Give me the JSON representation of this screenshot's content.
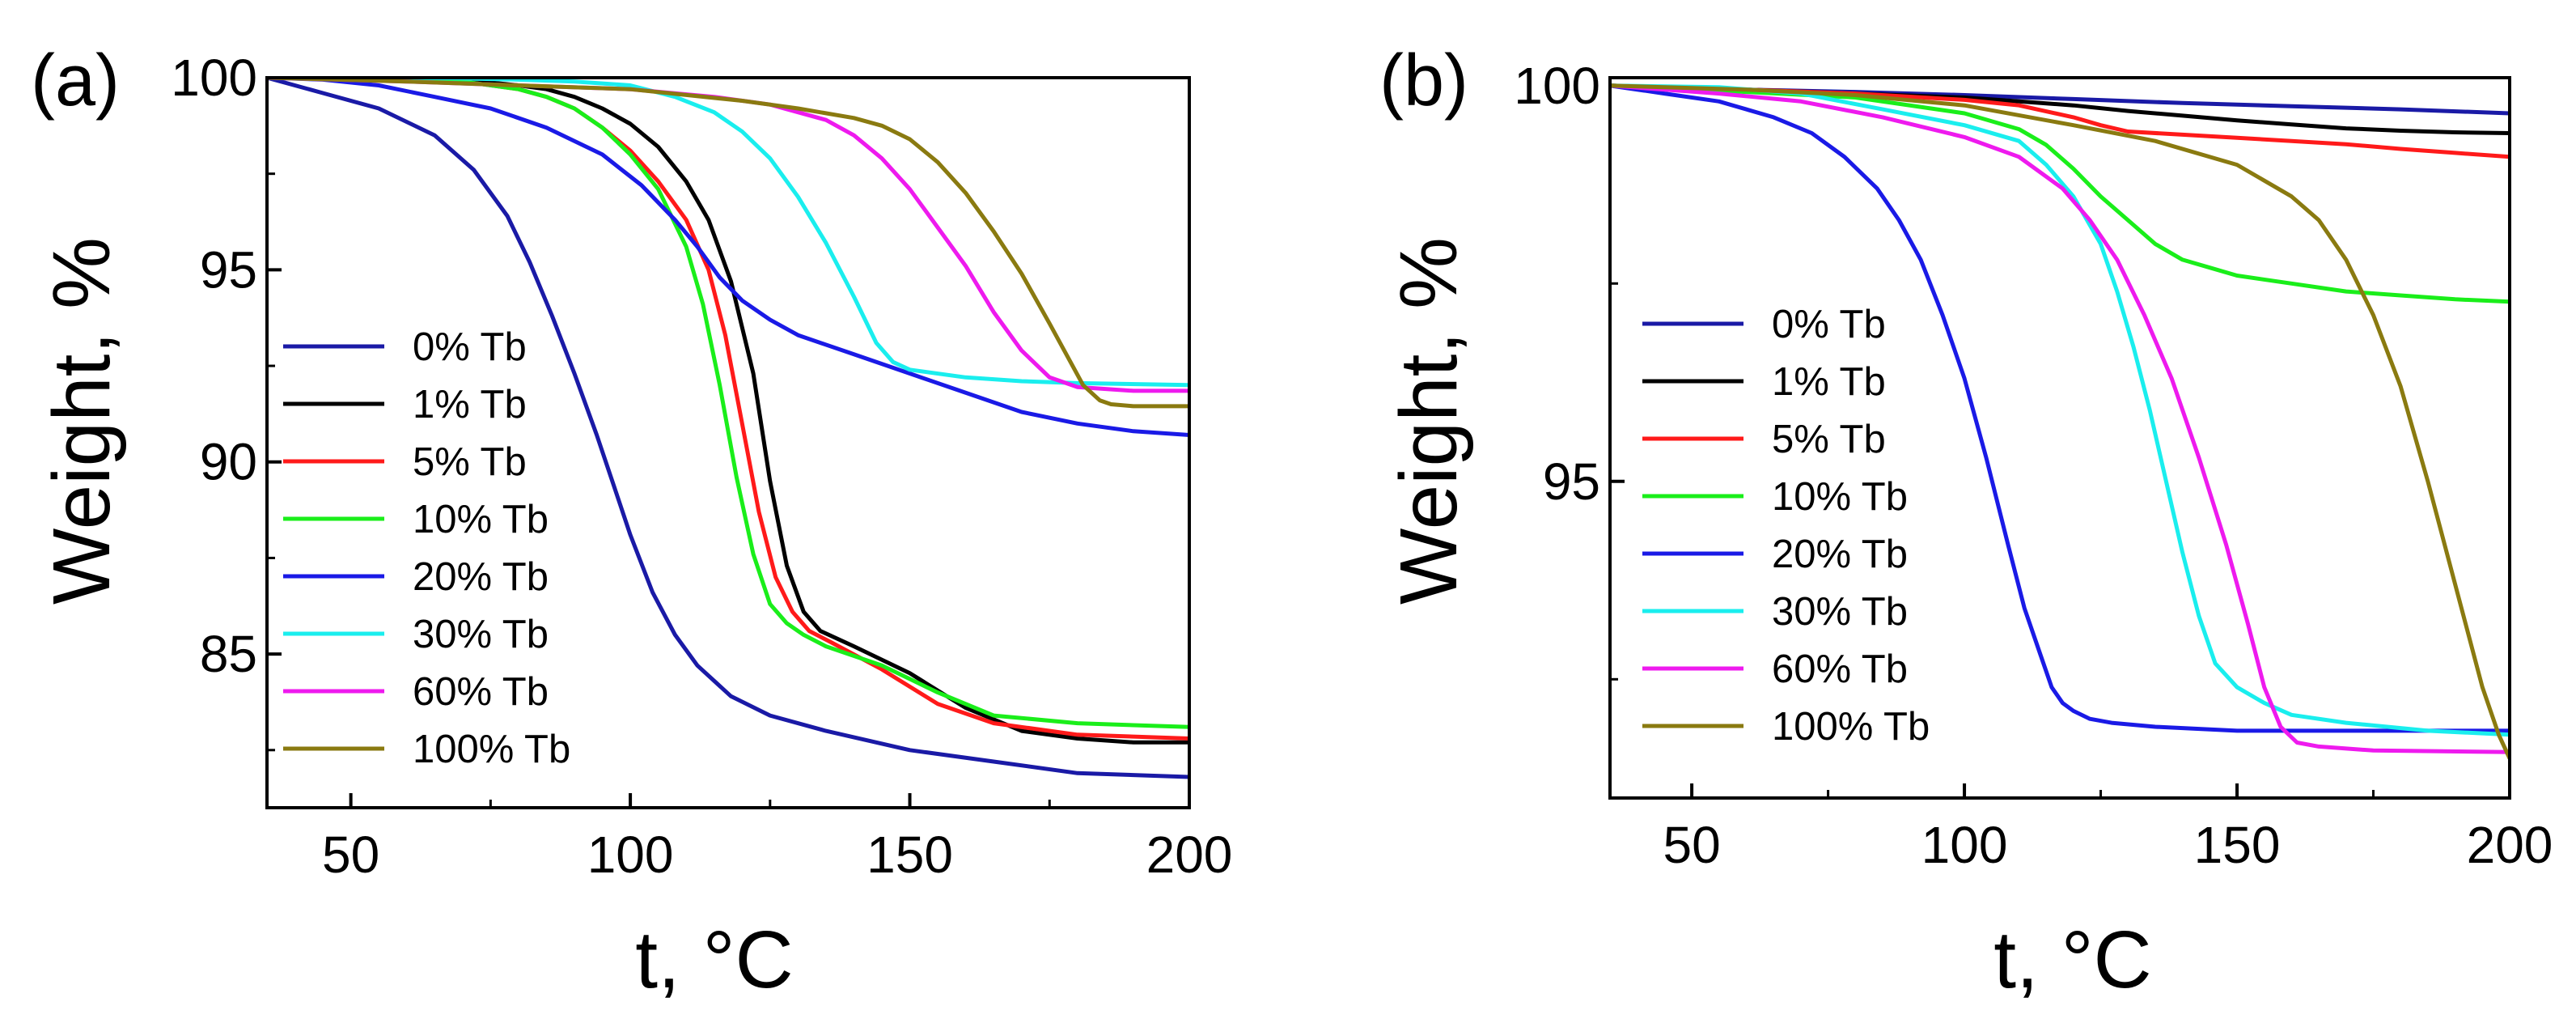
{
  "colors": {
    "0% Tb": "#1a1aa6",
    "1% Tb": "#000000",
    "5% Tb": "#ff1a1a",
    "10% Tb": "#1aee1a",
    "20% Tb": "#1a1ae6",
    "30% Tb": "#1aeeee",
    "60% Tb": "#ee1aee",
    "100% Tb": "#8a7a10"
  },
  "chart_data": [
    {
      "type": "line",
      "panel_label": "(a)",
      "title": "",
      "xlabel": "t, °C",
      "ylabel": "Weight, %",
      "xlim": [
        35,
        200
      ],
      "ylim": [
        81,
        100
      ],
      "xticks": [
        50,
        100,
        150,
        200
      ],
      "yticks": [
        85,
        90,
        95,
        100
      ],
      "grid": false,
      "legend_position": "left",
      "series": [
        {
          "name": "0% Tb",
          "x": [
            35,
            45,
            55,
            65,
            72,
            78,
            82,
            86,
            90,
            94,
            97,
            100,
            104,
            108,
            112,
            118,
            125,
            135,
            150,
            165,
            180,
            200
          ],
          "y": [
            100,
            99.6,
            99.2,
            98.5,
            97.6,
            96.4,
            95.2,
            93.8,
            92.3,
            90.7,
            89.4,
            88.1,
            86.6,
            85.5,
            84.7,
            83.9,
            83.4,
            83.0,
            82.5,
            82.2,
            81.9,
            81.8
          ]
        },
        {
          "name": "1% Tb",
          "x": [
            35,
            50,
            60,
            70,
            80,
            85,
            90,
            95,
            100,
            105,
            110,
            114,
            118,
            122,
            125,
            128,
            131,
            134,
            140,
            150,
            160,
            170,
            180,
            190,
            200
          ],
          "y": [
            100,
            99.99,
            99.97,
            99.95,
            99.8,
            99.7,
            99.5,
            99.2,
            98.8,
            98.2,
            97.3,
            96.3,
            94.7,
            92.3,
            89.5,
            87.3,
            86.1,
            85.6,
            85.2,
            84.5,
            83.6,
            83.0,
            82.8,
            82.7,
            82.7
          ]
        },
        {
          "name": "5% Tb",
          "x": [
            35,
            50,
            60,
            70,
            80,
            85,
            90,
            95,
            100,
            105,
            110,
            114,
            117,
            120,
            123,
            126,
            129,
            132,
            136,
            145,
            155,
            165,
            180,
            200
          ],
          "y": [
            100,
            99.99,
            99.97,
            99.9,
            99.7,
            99.5,
            99.2,
            98.7,
            98.1,
            97.3,
            96.3,
            95.0,
            93.3,
            91.0,
            88.7,
            87.0,
            86.1,
            85.6,
            85.3,
            84.6,
            83.7,
            83.2,
            82.9,
            82.8
          ]
        },
        {
          "name": "10% Tb",
          "x": [
            35,
            50,
            60,
            70,
            80,
            85,
            90,
            95,
            100,
            105,
            110,
            113,
            116,
            119,
            122,
            125,
            128,
            131,
            135,
            145,
            155,
            165,
            180,
            200
          ],
          "y": [
            100,
            99.99,
            99.97,
            99.9,
            99.7,
            99.5,
            99.2,
            98.7,
            98.0,
            97.1,
            95.6,
            94.1,
            92.0,
            89.6,
            87.6,
            86.3,
            85.8,
            85.5,
            85.2,
            84.7,
            84.0,
            83.4,
            83.2,
            83.1
          ]
        },
        {
          "name": "20% Tb",
          "x": [
            35,
            45,
            55,
            65,
            75,
            85,
            95,
            102,
            108,
            112,
            116,
            120,
            125,
            130,
            140,
            150,
            160,
            170,
            180,
            190,
            200
          ],
          "y": [
            100,
            99.95,
            99.8,
            99.5,
            99.2,
            98.7,
            98.0,
            97.2,
            96.3,
            95.6,
            94.8,
            94.2,
            93.7,
            93.3,
            92.8,
            92.3,
            91.8,
            91.3,
            91.0,
            90.8,
            90.7
          ]
        },
        {
          "name": "30% Tb",
          "x": [
            35,
            60,
            70,
            80,
            90,
            100,
            108,
            115,
            120,
            125,
            130,
            135,
            140,
            144,
            147,
            150,
            160,
            170,
            180,
            200
          ],
          "y": [
            100,
            100,
            99.98,
            99.95,
            99.9,
            99.8,
            99.5,
            99.1,
            98.6,
            97.9,
            96.9,
            95.7,
            94.3,
            93.1,
            92.6,
            92.4,
            92.2,
            92.1,
            92.05,
            92.0
          ]
        },
        {
          "name": "60% Tb",
          "x": [
            35,
            60,
            80,
            100,
            115,
            125,
            135,
            140,
            145,
            150,
            155,
            160,
            165,
            170,
            175,
            180,
            190,
            200
          ],
          "y": [
            100,
            99.9,
            99.8,
            99.7,
            99.5,
            99.3,
            98.9,
            98.5,
            97.9,
            97.1,
            96.1,
            95.1,
            93.9,
            92.9,
            92.2,
            91.95,
            91.85,
            91.85
          ]
        },
        {
          "name": "100% Tb",
          "x": [
            35,
            60,
            80,
            100,
            120,
            130,
            140,
            145,
            150,
            155,
            160,
            165,
            170,
            175,
            178,
            181,
            184,
            186,
            190,
            200
          ],
          "y": [
            100,
            99.9,
            99.8,
            99.7,
            99.4,
            99.2,
            98.95,
            98.75,
            98.4,
            97.8,
            97.0,
            96.0,
            94.9,
            93.6,
            92.8,
            92.0,
            91.6,
            91.5,
            91.45,
            91.45
          ]
        }
      ]
    },
    {
      "type": "line",
      "panel_label": "(b)",
      "title": "",
      "xlabel": "t, °C",
      "ylabel": "Weight, %",
      "xlim": [
        35,
        200
      ],
      "ylim": [
        91,
        100.1
      ],
      "xticks": [
        50,
        100,
        150,
        200
      ],
      "yticks": [
        95,
        100
      ],
      "grid": false,
      "legend_position": "left",
      "series": [
        {
          "name": "0% Tb",
          "x": [
            35,
            60,
            80,
            100,
            120,
            140,
            160,
            180,
            200
          ],
          "y": [
            100,
            99.95,
            99.92,
            99.88,
            99.83,
            99.78,
            99.74,
            99.7,
            99.65
          ]
        },
        {
          "name": "1% Tb",
          "x": [
            35,
            60,
            80,
            100,
            110,
            120,
            130,
            140,
            150,
            160,
            170,
            180,
            190,
            200
          ],
          "y": [
            100,
            99.95,
            99.9,
            99.85,
            99.8,
            99.75,
            99.68,
            99.62,
            99.56,
            99.51,
            99.46,
            99.43,
            99.41,
            99.4
          ]
        },
        {
          "name": "5% Tb",
          "x": [
            35,
            60,
            80,
            100,
            110,
            120,
            125,
            130,
            140,
            150,
            160,
            170,
            180,
            190,
            200
          ],
          "y": [
            100,
            99.95,
            99.9,
            99.82,
            99.75,
            99.6,
            99.5,
            99.42,
            99.38,
            99.34,
            99.3,
            99.26,
            99.2,
            99.15,
            99.1
          ]
        },
        {
          "name": "10% Tb",
          "x": [
            35,
            60,
            80,
            100,
            110,
            115,
            120,
            125,
            130,
            135,
            140,
            145,
            150,
            160,
            170,
            180,
            190,
            200
          ],
          "y": [
            100,
            99.92,
            99.85,
            99.65,
            99.45,
            99.25,
            98.95,
            98.6,
            98.3,
            98.0,
            97.8,
            97.7,
            97.6,
            97.5,
            97.4,
            97.35,
            97.3,
            97.27
          ]
        },
        {
          "name": "20% Tb",
          "x": [
            35,
            45,
            55,
            65,
            72,
            78,
            84,
            88,
            92,
            96,
            100,
            104,
            108,
            111,
            114,
            116,
            118,
            120,
            123,
            127,
            135,
            150,
            175,
            200
          ],
          "y": [
            100,
            99.9,
            99.8,
            99.6,
            99.4,
            99.1,
            98.7,
            98.3,
            97.8,
            97.1,
            96.3,
            95.3,
            94.2,
            93.4,
            92.8,
            92.4,
            92.2,
            92.1,
            92.0,
            91.95,
            91.9,
            91.85,
            91.85,
            91.85
          ]
        },
        {
          "name": "30% Tb",
          "x": [
            35,
            55,
            70,
            85,
            100,
            110,
            115,
            120,
            125,
            128,
            131,
            134,
            137,
            140,
            143,
            146,
            150,
            155,
            160,
            170,
            185,
            200
          ],
          "y": [
            100,
            99.98,
            99.9,
            99.7,
            99.5,
            99.3,
            99.0,
            98.6,
            98.0,
            97.4,
            96.7,
            95.9,
            95.0,
            94.1,
            93.3,
            92.7,
            92.4,
            92.2,
            92.05,
            91.95,
            91.85,
            91.8
          ]
        },
        {
          "name": "60% Tb",
          "x": [
            35,
            55,
            70,
            85,
            100,
            110,
            118,
            123,
            128,
            133,
            138,
            143,
            148,
            152,
            155,
            158,
            161,
            165,
            175,
            200
          ],
          "y": [
            100,
            99.9,
            99.8,
            99.6,
            99.35,
            99.1,
            98.7,
            98.3,
            97.8,
            97.1,
            96.3,
            95.3,
            94.2,
            93.2,
            92.4,
            91.9,
            91.7,
            91.65,
            91.6,
            91.58
          ]
        },
        {
          "name": "100% Tb",
          "x": [
            35,
            60,
            80,
            100,
            120,
            135,
            150,
            160,
            165,
            170,
            175,
            180,
            185,
            190,
            195,
            198,
            200
          ],
          "y": [
            100,
            99.95,
            99.88,
            99.75,
            99.5,
            99.3,
            99.0,
            98.6,
            98.3,
            97.8,
            97.1,
            96.2,
            95.0,
            93.7,
            92.4,
            91.8,
            91.5
          ]
        }
      ]
    }
  ]
}
